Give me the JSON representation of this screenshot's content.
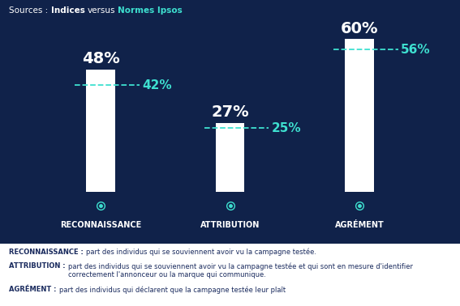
{
  "chart_data": {
    "type": "bar",
    "source": {
      "prefix": "Sources :",
      "joiner": "versus"
    },
    "categories": [
      "RECONNAISSANCE",
      "ATTRIBUTION",
      "AGRÉMENT"
    ],
    "series": [
      {
        "name": "Indices",
        "type": "bar",
        "color": "#ffffff",
        "values": [
          48,
          27,
          60
        ],
        "value_labels": [
          "48%",
          "27%",
          "60%"
        ]
      },
      {
        "name": "Normes Ipsos",
        "type": "hline",
        "color": "#3ee0d0",
        "line_style": "dashed",
        "values": [
          42,
          25,
          56
        ],
        "value_labels": [
          "42%",
          "25%",
          "56%"
        ]
      }
    ],
    "ylim": [
      0,
      70
    ],
    "data_labels": true,
    "tick_labels": "x",
    "grid": false,
    "annotations": [
      {
        "term": "RECONNAISSANCE :",
        "text": "part des individus qui se souviennent avoir vu la campagne testée."
      },
      {
        "term": "ATTRIBUTION :",
        "text": "part des individus qui se souviennent avoir vu la campagne testée et qui sont en mesure d'identifier correctement l'annonceur ou la marque qui communique."
      },
      {
        "term": "AGRÉMENT :",
        "text": "part des individus qui déclarent que la campagne testée leur plaît"
      }
    ]
  }
}
